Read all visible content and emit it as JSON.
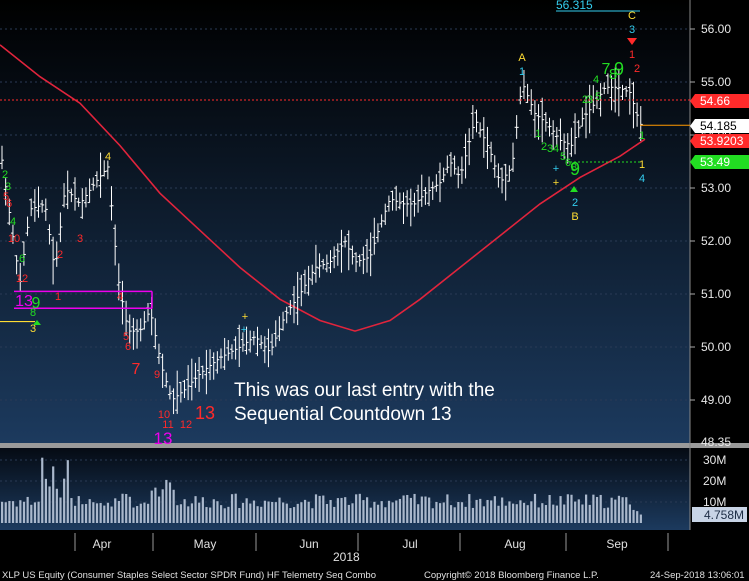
{
  "chart_data": {
    "type": "bar",
    "ticker_footer": "XLP US Equity (Consumer Staples Select Sector SPDR Fund) HF Telemetry Seq Combo",
    "copyright": "Copyright© 2018 Bloomberg Finance L.P.",
    "timestamp": "24-Sep-2018 13:06:01",
    "annotation_lines": [
      "This was our last entry with the",
      "Sequential Countdown 13"
    ],
    "price_axis": {
      "ylim": [
        48.3,
        56.45
      ],
      "tick_labels": [
        "56.00",
        "55.00",
        "54.00",
        "53.00",
        "52.00",
        "51.00",
        "50.00",
        "49.00",
        "48.35"
      ]
    },
    "x_axis": {
      "months": [
        "Apr",
        "May",
        "Jun",
        "Jul",
        "Aug",
        "Sep"
      ],
      "year": "2018"
    },
    "price_tags": [
      {
        "label": "54.66",
        "color": "#ff2a2a"
      },
      {
        "label": "54.185",
        "color": "#ffffff"
      },
      {
        "label": "53.9203",
        "color": "#ff2a2a"
      },
      {
        "label": "53.49",
        "color": "#22dd22"
      }
    ],
    "top_value_label": "56.315",
    "volume_axis": {
      "tick_labels": [
        "30M",
        "20M",
        "10M"
      ],
      "last_label": "4.758M"
    },
    "td_labels": {
      "A": "A",
      "B": "B",
      "C": "C",
      "c13": "13",
      "c13b": "13",
      "c9": "9",
      "c7": "7",
      "c8": "8"
    },
    "colors": {
      "background_top": "#000000",
      "background_bottom": "#1c3a5e",
      "bars": "#ffffff",
      "moving_average": "#e0243c",
      "magenta": "#ee00ee",
      "green_count": "#22dd22",
      "red_count": "#ff2a2a",
      "yellow": "#ffdd33",
      "cyan": "#33ccee"
    }
  }
}
